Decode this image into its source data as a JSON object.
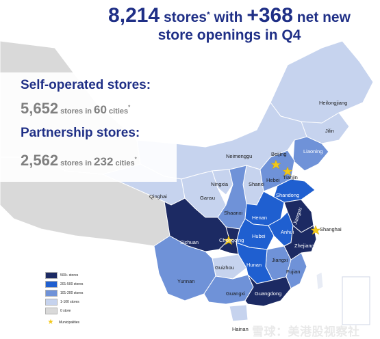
{
  "headline": {
    "total": "8,214",
    "total_text": " stores",
    "asterisk": "*",
    "mid": " with ",
    "net_new": "+368",
    "net_new_text": " net new",
    "line2": "store openings in Q4"
  },
  "info": {
    "self_operated_label": "Self-operated stores:",
    "self_operated_count": "5,652",
    "self_operated_text1": " stores in ",
    "self_operated_cities": "60",
    "self_operated_text2": " cities",
    "partnership_label": "Partnership stores:",
    "partnership_count": "2,562",
    "partnership_text1": " stores in ",
    "partnership_cities": "232",
    "partnership_text2": " cities",
    "asterisk": "*"
  },
  "provinces": {
    "heilongjiang": "Heilongjiang",
    "jilin": "Jilin",
    "liaoning": "Liaoning",
    "neimenggu": "Neimenggu",
    "beijing": "Beijing",
    "tianjin": "Tianjin",
    "hebei": "Hebei",
    "shanxi": "Shanxi",
    "ningxia": "Ningxia",
    "gansu": "Gansu",
    "qinghai": "Qinghai",
    "shandong": "Shandong",
    "shaanxi": "Shaanxi",
    "henan": "Henan",
    "jiangsu": "Jiangsu",
    "shanghai": "Shanghai",
    "anhui": "Anhui",
    "hubei": "Hubei",
    "sichuan": "Sichuan",
    "chongqing": "Chongqing",
    "zhejiang": "Zhejiang",
    "hunan": "Hunan",
    "jiangxi": "Jiangxi",
    "guizhou": "Guizhou",
    "fujian": "Fujian",
    "yunnan": "Yunnan",
    "guangxi": "Guangxi",
    "guangdong": "Guangdong",
    "hainan": "Hainan"
  },
  "legend": [
    {
      "label": "500+ stores",
      "color": "#1c2a63"
    },
    {
      "label": "201-500 stores",
      "color": "#1f5fd0"
    },
    {
      "label": "101-200 stores",
      "color": "#6f92d8"
    },
    {
      "label": "1-100 stores",
      "color": "#c6d3ee"
    },
    {
      "label": "0 store",
      "color": "#d9d9d9"
    }
  ],
  "legend_municipalities": "Municipalities",
  "legend_star_icon": "star-icon",
  "watermark": "雪球：美港股视察社"
}
